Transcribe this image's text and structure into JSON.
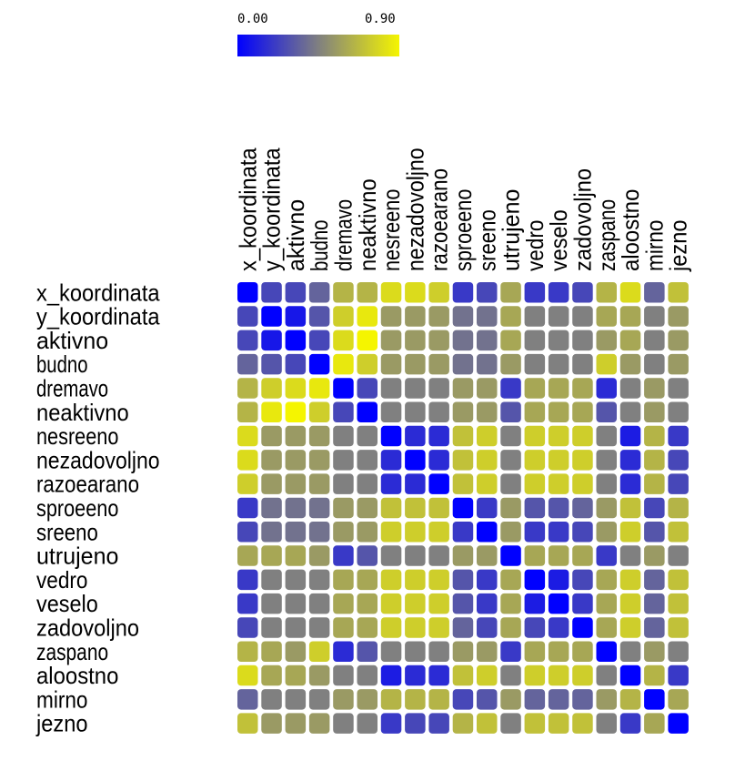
{
  "chart_data": {
    "type": "heatmap",
    "title": "",
    "xlabel": "",
    "ylabel": "",
    "legend_position": "top",
    "legend": {
      "min_label": "0.00",
      "max_label": "0.90",
      "min": 0.0,
      "max": 0.9,
      "low_color": "#0000ff",
      "mid_color": "#808080",
      "high_color": "#f5f500"
    },
    "labels": [
      "x_koordinata",
      "y_koordinata",
      "aktivno",
      "budno",
      "dremavo",
      "neaktivno",
      "nesreeno",
      "nezadovoljno",
      "razoearano",
      "sproeeno",
      "sreeno",
      "utrujeno",
      "vedro",
      "veselo",
      "zadovoljno",
      "zaspano",
      "aloostno",
      "mirno",
      "jezno"
    ],
    "values": [
      [
        0.0,
        0.25,
        0.25,
        0.35,
        0.65,
        0.65,
        0.8,
        0.8,
        0.75,
        0.2,
        0.25,
        0.6,
        0.2,
        0.2,
        0.25,
        0.65,
        0.8,
        0.35,
        0.7
      ],
      [
        0.25,
        0.0,
        0.08,
        0.3,
        0.75,
        0.85,
        0.55,
        0.55,
        0.55,
        0.4,
        0.4,
        0.6,
        0.45,
        0.45,
        0.45,
        0.6,
        0.6,
        0.45,
        0.55
      ],
      [
        0.25,
        0.08,
        0.0,
        0.25,
        0.8,
        0.9,
        0.55,
        0.55,
        0.55,
        0.4,
        0.4,
        0.6,
        0.45,
        0.45,
        0.45,
        0.55,
        0.6,
        0.45,
        0.55
      ],
      [
        0.35,
        0.3,
        0.25,
        0.0,
        0.85,
        0.75,
        0.55,
        0.55,
        0.55,
        0.4,
        0.4,
        0.55,
        0.45,
        0.45,
        0.45,
        0.75,
        0.55,
        0.45,
        0.55
      ],
      [
        0.65,
        0.75,
        0.8,
        0.85,
        0.0,
        0.25,
        0.45,
        0.45,
        0.45,
        0.55,
        0.55,
        0.2,
        0.6,
        0.6,
        0.6,
        0.15,
        0.45,
        0.55,
        0.45
      ],
      [
        0.65,
        0.85,
        0.9,
        0.75,
        0.25,
        0.0,
        0.45,
        0.45,
        0.45,
        0.55,
        0.55,
        0.3,
        0.6,
        0.6,
        0.6,
        0.3,
        0.45,
        0.55,
        0.45
      ],
      [
        0.8,
        0.55,
        0.55,
        0.55,
        0.45,
        0.45,
        0.0,
        0.15,
        0.15,
        0.7,
        0.75,
        0.45,
        0.75,
        0.75,
        0.75,
        0.45,
        0.1,
        0.65,
        0.2
      ],
      [
        0.8,
        0.55,
        0.55,
        0.55,
        0.45,
        0.45,
        0.15,
        0.0,
        0.15,
        0.7,
        0.75,
        0.45,
        0.75,
        0.75,
        0.75,
        0.45,
        0.15,
        0.65,
        0.25
      ],
      [
        0.75,
        0.55,
        0.55,
        0.55,
        0.45,
        0.45,
        0.15,
        0.15,
        0.0,
        0.7,
        0.75,
        0.45,
        0.75,
        0.75,
        0.75,
        0.45,
        0.15,
        0.65,
        0.25
      ],
      [
        0.2,
        0.4,
        0.4,
        0.4,
        0.55,
        0.55,
        0.7,
        0.7,
        0.7,
        0.0,
        0.2,
        0.55,
        0.3,
        0.3,
        0.35,
        0.55,
        0.7,
        0.25,
        0.65
      ],
      [
        0.25,
        0.4,
        0.4,
        0.4,
        0.55,
        0.55,
        0.75,
        0.75,
        0.75,
        0.2,
        0.0,
        0.55,
        0.2,
        0.2,
        0.25,
        0.55,
        0.75,
        0.3,
        0.7
      ],
      [
        0.6,
        0.6,
        0.6,
        0.55,
        0.2,
        0.3,
        0.45,
        0.45,
        0.45,
        0.55,
        0.55,
        0.0,
        0.6,
        0.6,
        0.6,
        0.2,
        0.45,
        0.55,
        0.45
      ],
      [
        0.2,
        0.45,
        0.45,
        0.45,
        0.6,
        0.6,
        0.75,
        0.75,
        0.75,
        0.3,
        0.2,
        0.6,
        0.0,
        0.1,
        0.25,
        0.6,
        0.75,
        0.35,
        0.7
      ],
      [
        0.2,
        0.45,
        0.45,
        0.45,
        0.6,
        0.6,
        0.75,
        0.75,
        0.75,
        0.3,
        0.2,
        0.6,
        0.1,
        0.0,
        0.2,
        0.6,
        0.75,
        0.35,
        0.7
      ],
      [
        0.25,
        0.45,
        0.45,
        0.45,
        0.6,
        0.6,
        0.75,
        0.75,
        0.75,
        0.35,
        0.25,
        0.6,
        0.25,
        0.2,
        0.0,
        0.6,
        0.75,
        0.35,
        0.7
      ],
      [
        0.65,
        0.6,
        0.55,
        0.75,
        0.15,
        0.3,
        0.45,
        0.45,
        0.45,
        0.55,
        0.55,
        0.2,
        0.6,
        0.6,
        0.6,
        0.0,
        0.45,
        0.55,
        0.45
      ],
      [
        0.8,
        0.6,
        0.6,
        0.55,
        0.45,
        0.45,
        0.1,
        0.15,
        0.15,
        0.7,
        0.75,
        0.45,
        0.75,
        0.75,
        0.75,
        0.45,
        0.0,
        0.65,
        0.2
      ],
      [
        0.35,
        0.45,
        0.45,
        0.45,
        0.55,
        0.55,
        0.65,
        0.65,
        0.65,
        0.25,
        0.3,
        0.55,
        0.35,
        0.35,
        0.35,
        0.55,
        0.65,
        0.0,
        0.6
      ],
      [
        0.7,
        0.55,
        0.55,
        0.55,
        0.45,
        0.45,
        0.2,
        0.25,
        0.25,
        0.65,
        0.7,
        0.45,
        0.7,
        0.7,
        0.7,
        0.45,
        0.2,
        0.6,
        0.0
      ]
    ]
  }
}
